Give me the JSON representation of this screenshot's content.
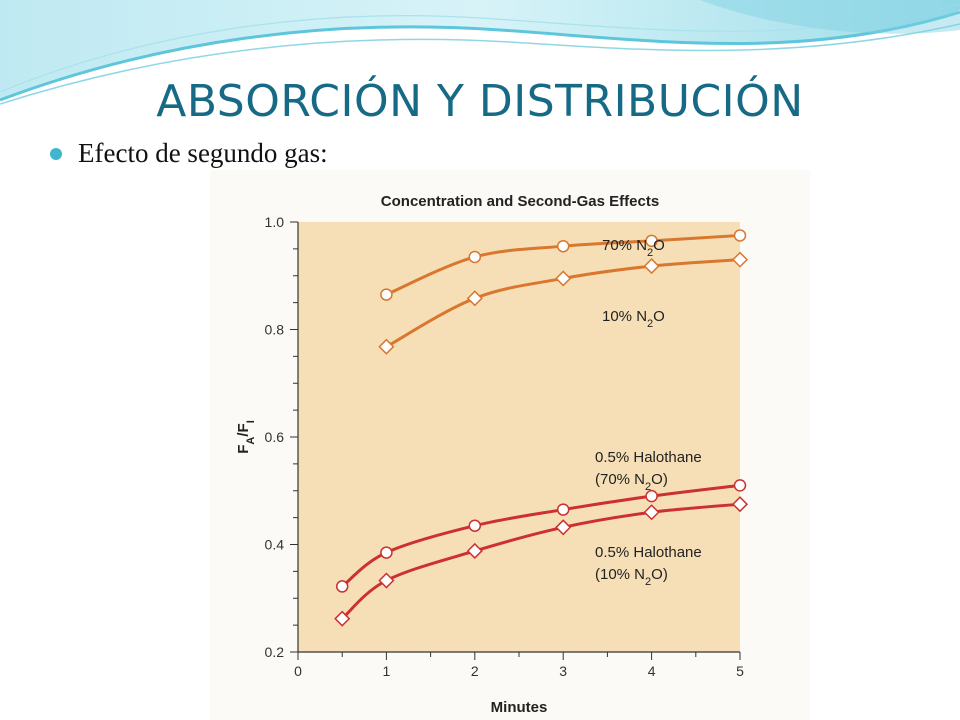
{
  "slide": {
    "title": "ABSORCIÓN Y DISTRIBUCIÓN",
    "bullet": "Efecto de segundo gas:",
    "accent_color": "#176a86",
    "bullet_color": "#3fb6cc"
  },
  "chart_data": {
    "type": "line",
    "title": "Concentration and Second-Gas Effects",
    "xlabel": "Minutes",
    "ylabel": "FA/FI",
    "xlim": [
      0,
      5
    ],
    "ylim": [
      0.2,
      1.0
    ],
    "xticks": [
      0,
      1,
      2,
      3,
      4,
      5
    ],
    "yticks": [
      0.2,
      0.4,
      0.6,
      0.8,
      1.0
    ],
    "ytick_labels": [
      "0.2",
      "0.4",
      "0.6",
      "0.8",
      "1.0"
    ],
    "grid": false,
    "plot_bg": "#f6dfb6",
    "series": [
      {
        "name": "70% N2O",
        "label_lines": [
          [
            "70% N",
            "2",
            "O"
          ]
        ],
        "color": "#d9772f",
        "marker": "circle",
        "points": [
          [
            1,
            0.865
          ],
          [
            2,
            0.935
          ],
          [
            3,
            0.955
          ],
          [
            4,
            0.965
          ],
          [
            5,
            0.975
          ]
        ]
      },
      {
        "name": "10% N2O",
        "label_lines": [
          [
            "10% N",
            "2",
            "O"
          ]
        ],
        "color": "#d9772f",
        "marker": "diamond",
        "points": [
          [
            1,
            0.768
          ],
          [
            2,
            0.858
          ],
          [
            3,
            0.895
          ],
          [
            4,
            0.918
          ],
          [
            5,
            0.93
          ]
        ]
      },
      {
        "name": "0.5% Halothane (70% N2O)",
        "label_lines": [
          [
            "0.5% Halothane"
          ],
          [
            "(70% N",
            "2",
            "O)"
          ]
        ],
        "color": "#cc3030",
        "marker": "circle",
        "points": [
          [
            0.5,
            0.322
          ],
          [
            1,
            0.385
          ],
          [
            2,
            0.435
          ],
          [
            3,
            0.465
          ],
          [
            4,
            0.49
          ],
          [
            5,
            0.51
          ]
        ]
      },
      {
        "name": "0.5% Halothane (10% N2O)",
        "label_lines": [
          [
            "0.5% Halothane"
          ],
          [
            "(10% N",
            "2",
            "O)"
          ]
        ],
        "color": "#cc3030",
        "marker": "diamond",
        "points": [
          [
            0.5,
            0.262
          ],
          [
            1,
            0.333
          ],
          [
            2,
            0.388
          ],
          [
            3,
            0.432
          ],
          [
            4,
            0.46
          ],
          [
            5,
            0.475
          ]
        ]
      }
    ]
  }
}
